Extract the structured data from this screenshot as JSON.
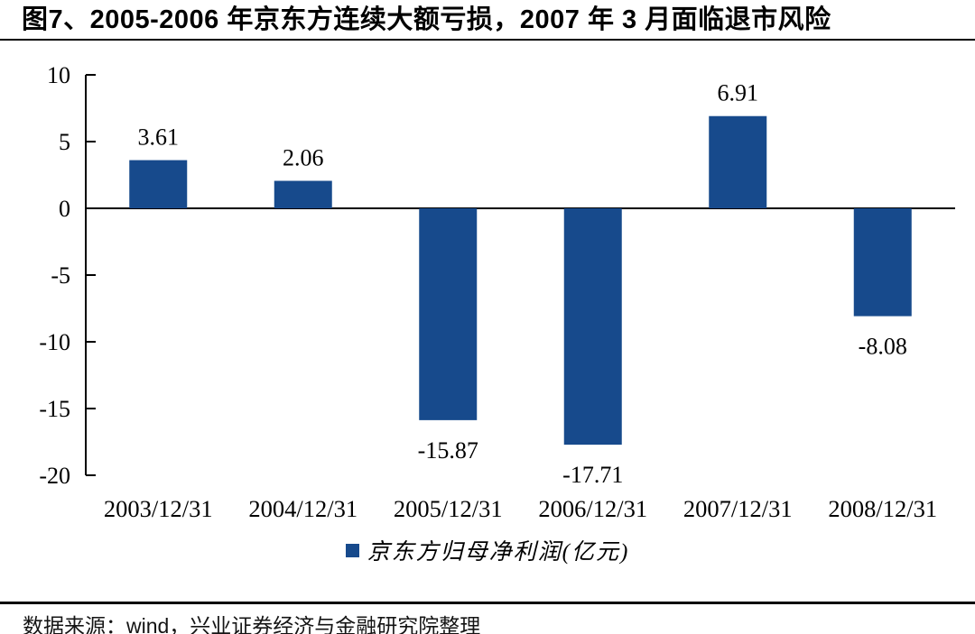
{
  "header": {
    "title": "图7、2005-2006 年京东方连续大额亏损，2007 年 3 月面临退市风险"
  },
  "chart_data": {
    "type": "bar",
    "title": "图7、2005-2006 年京东方连续大额亏损，2007 年 3 月面临退市风险",
    "categories": [
      "2003/12/31",
      "2004/12/31",
      "2005/12/31",
      "2006/12/31",
      "2007/12/31",
      "2008/12/31"
    ],
    "values": [
      3.61,
      2.06,
      -15.87,
      -17.71,
      6.91,
      -8.08
    ],
    "value_labels": [
      "3.61",
      "2.06",
      "-15.87",
      "-17.71",
      "6.91",
      "-8.08"
    ],
    "legend": "京东方归母净利润(亿元)",
    "legend_position": "bottom",
    "xlabel": "",
    "ylabel": "",
    "ylim": [
      -20,
      10
    ],
    "yticks": [
      10,
      5,
      0,
      -5,
      -10,
      -15,
      -20
    ],
    "grid": false,
    "bar_color": "#174A8C",
    "axis_color": "#000000"
  },
  "footer": {
    "source": "数据来源：wind，兴业证券经济与金融研究院整理"
  }
}
